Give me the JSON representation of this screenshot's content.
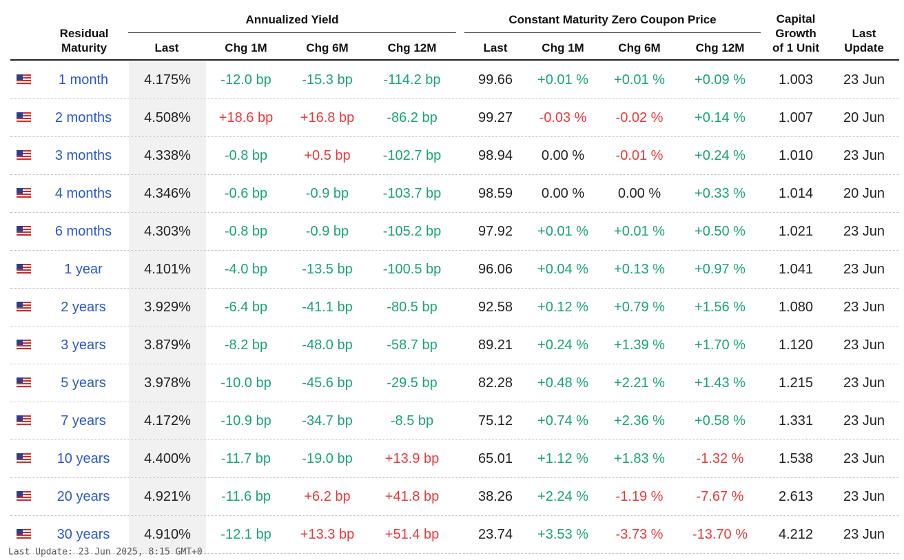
{
  "headers": {
    "residual_maturity": [
      "Residual",
      "Maturity"
    ],
    "annualized_yield": "Annualized Yield",
    "zero_coupon": "Constant Maturity Zero Coupon Price",
    "capital_growth": [
      "Capital",
      "Growth",
      "of 1 Unit"
    ],
    "last_update": [
      "Last",
      "Update"
    ],
    "yield_cols": [
      "Last",
      "Chg 1M",
      "Chg 6M",
      "Chg 12M"
    ],
    "price_cols": [
      "Last",
      "Chg 1M",
      "Chg 6M",
      "Chg 12M"
    ]
  },
  "colors": {
    "positive": "#1aa37a",
    "negative": "#e63a3a",
    "link": "#2a57c9"
  },
  "flag_icon": "us-flag-icon",
  "rows": [
    {
      "maturity": "1 month",
      "y_last": "4.175%",
      "y_1m": "-12.0 bp",
      "y_6m": "-15.3 bp",
      "y_12m": "-114.2 bp",
      "p_last": "99.66",
      "p_1m": "+0.01 %",
      "p_6m": "+0.01 %",
      "p_12m": "+0.09 %",
      "growth": "1.003",
      "update": "23 Jun"
    },
    {
      "maturity": "2 months",
      "y_last": "4.508%",
      "y_1m": "+18.6 bp",
      "y_6m": "+16.8 bp",
      "y_12m": "-86.2 bp",
      "p_last": "99.27",
      "p_1m": "-0.03 %",
      "p_6m": "-0.02 %",
      "p_12m": "+0.14 %",
      "growth": "1.007",
      "update": "20 Jun"
    },
    {
      "maturity": "3 months",
      "y_last": "4.338%",
      "y_1m": "-0.8 bp",
      "y_6m": "+0.5 bp",
      "y_12m": "-102.7 bp",
      "p_last": "98.94",
      "p_1m": "0.00 %",
      "p_6m": "-0.01 %",
      "p_12m": "+0.24 %",
      "growth": "1.010",
      "update": "23 Jun"
    },
    {
      "maturity": "4 months",
      "y_last": "4.346%",
      "y_1m": "-0.6 bp",
      "y_6m": "-0.9 bp",
      "y_12m": "-103.7 bp",
      "p_last": "98.59",
      "p_1m": "0.00 %",
      "p_6m": "0.00 %",
      "p_12m": "+0.33 %",
      "growth": "1.014",
      "update": "20 Jun"
    },
    {
      "maturity": "6 months",
      "y_last": "4.303%",
      "y_1m": "-0.8 bp",
      "y_6m": "-0.9 bp",
      "y_12m": "-105.2 bp",
      "p_last": "97.92",
      "p_1m": "+0.01 %",
      "p_6m": "+0.01 %",
      "p_12m": "+0.50 %",
      "growth": "1.021",
      "update": "23 Jun"
    },
    {
      "maturity": "1 year",
      "y_last": "4.101%",
      "y_1m": "-4.0 bp",
      "y_6m": "-13.5 bp",
      "y_12m": "-100.5 bp",
      "p_last": "96.06",
      "p_1m": "+0.04 %",
      "p_6m": "+0.13 %",
      "p_12m": "+0.97 %",
      "growth": "1.041",
      "update": "23 Jun"
    },
    {
      "maturity": "2 years",
      "y_last": "3.929%",
      "y_1m": "-6.4 bp",
      "y_6m": "-41.1 bp",
      "y_12m": "-80.5 bp",
      "p_last": "92.58",
      "p_1m": "+0.12 %",
      "p_6m": "+0.79 %",
      "p_12m": "+1.56 %",
      "growth": "1.080",
      "update": "23 Jun"
    },
    {
      "maturity": "3 years",
      "y_last": "3.879%",
      "y_1m": "-8.2 bp",
      "y_6m": "-48.0 bp",
      "y_12m": "-58.7 bp",
      "p_last": "89.21",
      "p_1m": "+0.24 %",
      "p_6m": "+1.39 %",
      "p_12m": "+1.70 %",
      "growth": "1.120",
      "update": "23 Jun"
    },
    {
      "maturity": "5 years",
      "y_last": "3.978%",
      "y_1m": "-10.0 bp",
      "y_6m": "-45.6 bp",
      "y_12m": "-29.5 bp",
      "p_last": "82.28",
      "p_1m": "+0.48 %",
      "p_6m": "+2.21 %",
      "p_12m": "+1.43 %",
      "growth": "1.215",
      "update": "23 Jun"
    },
    {
      "maturity": "7 years",
      "y_last": "4.172%",
      "y_1m": "-10.9 bp",
      "y_6m": "-34.7 bp",
      "y_12m": "-8.5 bp",
      "p_last": "75.12",
      "p_1m": "+0.74 %",
      "p_6m": "+2.36 %",
      "p_12m": "+0.58 %",
      "growth": "1.331",
      "update": "23 Jun"
    },
    {
      "maturity": "10 years",
      "y_last": "4.400%",
      "y_1m": "-11.7 bp",
      "y_6m": "-19.0 bp",
      "y_12m": "+13.9 bp",
      "p_last": "65.01",
      "p_1m": "+1.12 %",
      "p_6m": "+1.83 %",
      "p_12m": "-1.32 %",
      "growth": "1.538",
      "update": "23 Jun"
    },
    {
      "maturity": "20 years",
      "y_last": "4.921%",
      "y_1m": "-11.6 bp",
      "y_6m": "+6.2 bp",
      "y_12m": "+41.8 bp",
      "p_last": "38.26",
      "p_1m": "+2.24 %",
      "p_6m": "-1.19 %",
      "p_12m": "-7.67 %",
      "growth": "2.613",
      "update": "23 Jun"
    },
    {
      "maturity": "30 years",
      "y_last": "4.910%",
      "y_1m": "-12.1 bp",
      "y_6m": "+13.3 bp",
      "y_12m": "+51.4 bp",
      "p_last": "23.74",
      "p_1m": "+3.53 %",
      "p_6m": "-3.73 %",
      "p_12m": "-13.70 %",
      "growth": "4.212",
      "update": "23 Jun"
    }
  ],
  "footer": "Last Update: 23 Jun 2025, 8:15 GMT+0"
}
